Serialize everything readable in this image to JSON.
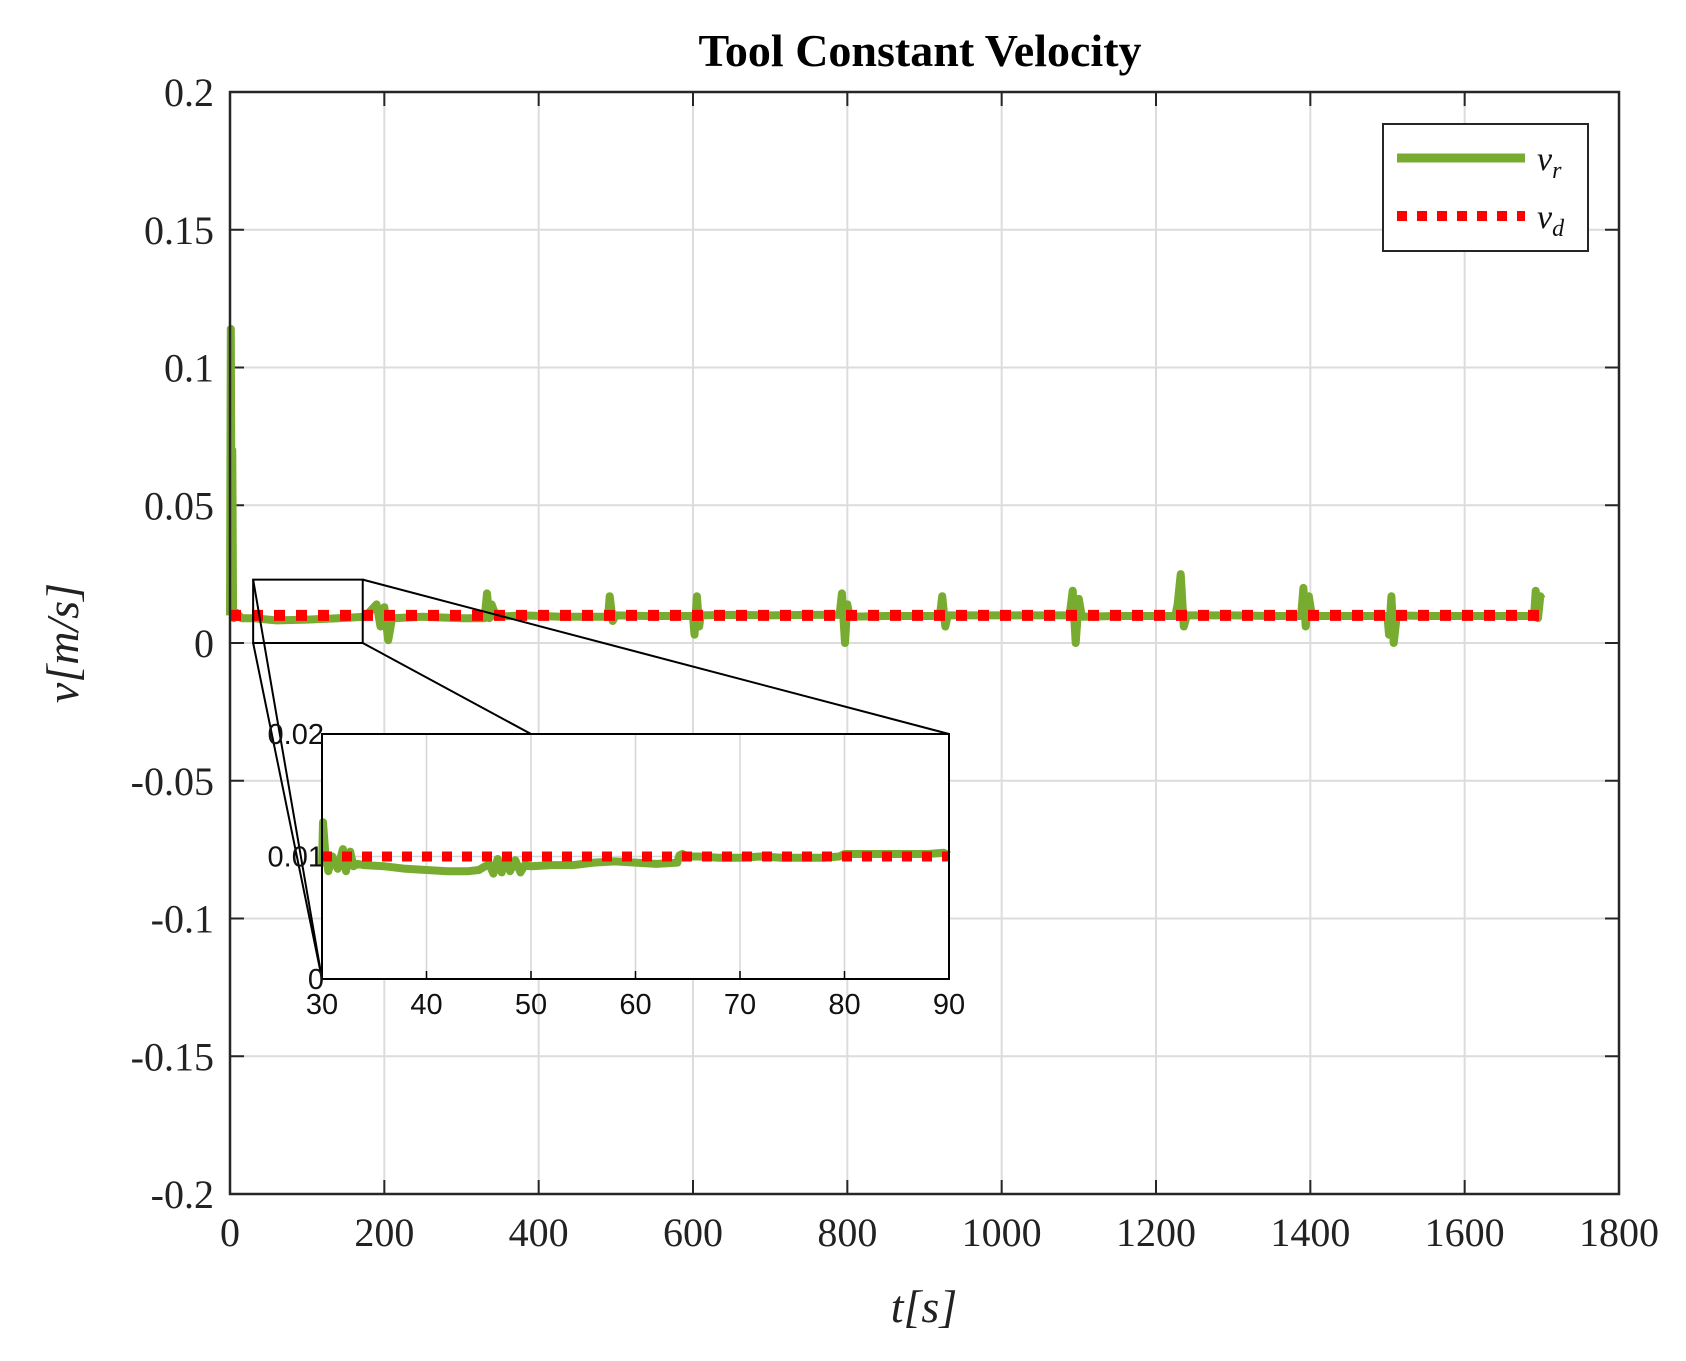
{
  "chart_data": [
    {
      "type": "line",
      "title": "Tool Constant Velocity",
      "xlabel": "t[s]",
      "ylabel": "v[m/s]",
      "xlim": [
        0,
        1800
      ],
      "ylim": [
        -0.2,
        0.2
      ],
      "xticks": [
        0,
        200,
        400,
        600,
        800,
        1000,
        1200,
        1400,
        1600,
        1800
      ],
      "yticks": [
        0.2,
        0.15,
        0.1,
        0.05,
        0,
        -0.05,
        -0.1,
        -0.15,
        -0.2
      ],
      "xtick_labels": [
        "0",
        "200",
        "400",
        "600",
        "800",
        "1000",
        "1200",
        "1400",
        "1600",
        "1800"
      ],
      "ytick_labels": [
        "0.2",
        "0.15",
        "0.1",
        "0.05",
        "0",
        "-0.05",
        "-0.1",
        "-0.15",
        "-0.2"
      ],
      "grid": true,
      "legend_position": "top-right",
      "series": [
        {
          "name": "v_r",
          "legend_base": "v",
          "legend_sub": "r",
          "color": "#77ac30",
          "style": "solid",
          "x": [
            0,
            1,
            2,
            3,
            4,
            5,
            8,
            15,
            30,
            60,
            100,
            140,
            175,
            190,
            195,
            200,
            205,
            210,
            250,
            300,
            330,
            333,
            336,
            339,
            345,
            380,
            430,
            490,
            492,
            496,
            500,
            540,
            600,
            602,
            605,
            608,
            610,
            650,
            700,
            750,
            790,
            793,
            797,
            800,
            803,
            850,
            900,
            920,
            923,
            927,
            930,
            1000,
            1050,
            1088,
            1092,
            1096,
            1100,
            1104,
            1150,
            1200,
            1225,
            1228,
            1232,
            1236,
            1240,
            1300,
            1350,
            1388,
            1391,
            1394,
            1398,
            1402,
            1450,
            1500,
            1502,
            1505,
            1508,
            1512,
            1550,
            1600,
            1650,
            1690,
            1692,
            1695,
            1698,
            1700
          ],
          "y": [
            0.01,
            0.114,
            0.04,
            0.07,
            0.01,
            0.009,
            0.011,
            0.009,
            0.009,
            0.0082,
            0.0085,
            0.009,
            0.0095,
            0.014,
            0.006,
            0.013,
            0.001,
            0.009,
            0.0095,
            0.009,
            0.009,
            0.018,
            0.009,
            0.014,
            0.0095,
            0.01,
            0.0095,
            0.0095,
            0.017,
            0.008,
            0.01,
            0.0098,
            0.0098,
            0.003,
            0.017,
            0.006,
            0.01,
            0.0102,
            0.01,
            0.0102,
            0.0102,
            0.018,
            0.0,
            0.014,
            0.0095,
            0.0098,
            0.0098,
            0.0098,
            0.017,
            0.006,
            0.01,
            0.01,
            0.01,
            0.01,
            0.019,
            0.0,
            0.016,
            0.0095,
            0.0098,
            0.0098,
            0.0098,
            0.014,
            0.025,
            0.006,
            0.01,
            0.01,
            0.0098,
            0.0098,
            0.02,
            0.006,
            0.017,
            0.0098,
            0.0098,
            0.0098,
            0.003,
            0.017,
            0.0,
            0.01,
            0.0098,
            0.0098,
            0.0098,
            0.0098,
            0.019,
            0.009,
            0.017,
            0.016
          ]
        },
        {
          "name": "v_d",
          "legend_base": "v",
          "legend_sub": "d",
          "color": "#ff0000",
          "style": "dotted",
          "x": [
            0,
            1700
          ],
          "y": [
            0.01,
            0.01
          ]
        }
      ]
    },
    {
      "type": "line",
      "title": "",
      "role": "inset-zoom",
      "xlim": [
        30,
        90
      ],
      "ylim": [
        0,
        0.02
      ],
      "xticks": [
        30,
        40,
        50,
        60,
        70,
        80,
        90
      ],
      "yticks": [
        0.02,
        0.01,
        0
      ],
      "xtick_labels": [
        "30",
        "40",
        "50",
        "60",
        "70",
        "80",
        "90"
      ],
      "ytick_labels": [
        "0.02",
        "0.01",
        "0"
      ],
      "grid": true,
      "series": [
        {
          "name": "v_r",
          "color": "#77ac30",
          "style": "solid",
          "x": [
            30,
            30.1,
            30.3,
            30.6,
            31,
            31.5,
            32,
            32.3,
            32.7,
            33,
            33.4,
            34,
            36,
            38,
            40,
            42,
            44,
            45,
            46,
            46.4,
            46.8,
            47.2,
            47.6,
            48,
            48.5,
            49,
            49.4,
            50,
            52,
            54,
            56,
            58,
            60,
            62,
            64,
            64.2,
            64.5,
            65,
            66,
            68,
            70,
            72,
            74,
            76,
            78,
            79.5,
            80,
            82,
            84,
            86,
            88,
            89.5,
            90
          ],
          "y": [
            0.0092,
            0.0128,
            0.0105,
            0.0088,
            0.01,
            0.009,
            0.0106,
            0.0088,
            0.0104,
            0.0092,
            0.0094,
            0.0093,
            0.0092,
            0.009,
            0.0089,
            0.0088,
            0.0088,
            0.0089,
            0.0094,
            0.0086,
            0.0098,
            0.0087,
            0.0099,
            0.0088,
            0.0097,
            0.0087,
            0.0093,
            0.0092,
            0.0093,
            0.0093,
            0.0095,
            0.0096,
            0.0095,
            0.0094,
            0.0095,
            0.0101,
            0.0102,
            0.01,
            0.01,
            0.0099,
            0.0099,
            0.01,
            0.0099,
            0.0099,
            0.0099,
            0.01,
            0.0102,
            0.0102,
            0.0102,
            0.0102,
            0.0102,
            0.0103,
            0.0101
          ]
        },
        {
          "name": "v_d",
          "color": "#ff0000",
          "style": "dotted",
          "x": [
            30,
            90
          ],
          "y": [
            0.01,
            0.01
          ]
        }
      ]
    }
  ]
}
